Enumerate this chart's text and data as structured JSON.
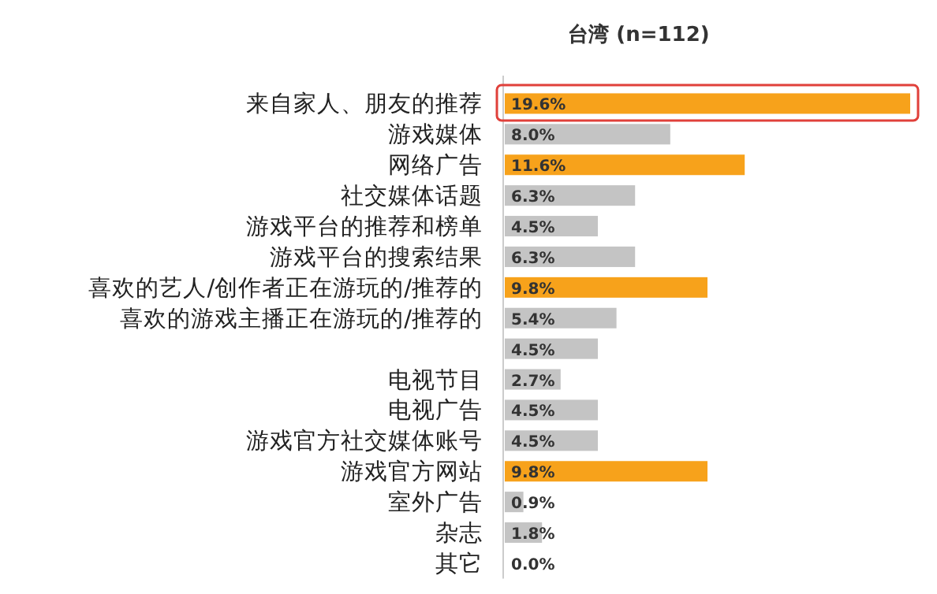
{
  "chart_data": {
    "type": "bar",
    "orientation": "horizontal",
    "title": "台湾 (n=112)",
    "categories": [
      "来自家人、朋友的推荐",
      "游戏媒体",
      "网络广告",
      "社交媒体话题",
      "游戏平台的推荐和榜单",
      "游戏平台的搜索结果",
      "喜欢的艺人/创作者正在游玩的/推荐的",
      "喜欢的游戏主播正在游玩的/推荐的",
      null,
      "电视节目",
      "电视广告",
      "游戏官方社交媒体账号",
      "游戏官方网站",
      "室外广告",
      "杂志",
      "其它"
    ],
    "values": [
      19.6,
      8.0,
      11.6,
      6.3,
      4.5,
      6.3,
      9.8,
      5.4,
      4.5,
      2.7,
      4.5,
      4.5,
      9.8,
      0.9,
      1.8,
      0.0
    ],
    "colors": [
      "#f7a21b",
      "#c4c4c4",
      "#f7a21b",
      "#c4c4c4",
      "#c4c4c4",
      "#c4c4c4",
      "#f7a21b",
      "#c4c4c4",
      "#c4c4c4",
      "#c4c4c4",
      "#c4c4c4",
      "#c4c4c4",
      "#f7a21b",
      "#c4c4c4",
      "#c4c4c4",
      "#c4c4c4"
    ],
    "value_labels": [
      "19.6%",
      "8.0%",
      "11.6%",
      "6.3%",
      "4.5%",
      "6.3%",
      "9.8%",
      "5.4%",
      "4.5%",
      "2.7%",
      "4.5%",
      "4.5%",
      "9.8%",
      "0.9%",
      "1.8%",
      "0.0%"
    ]
  }
}
